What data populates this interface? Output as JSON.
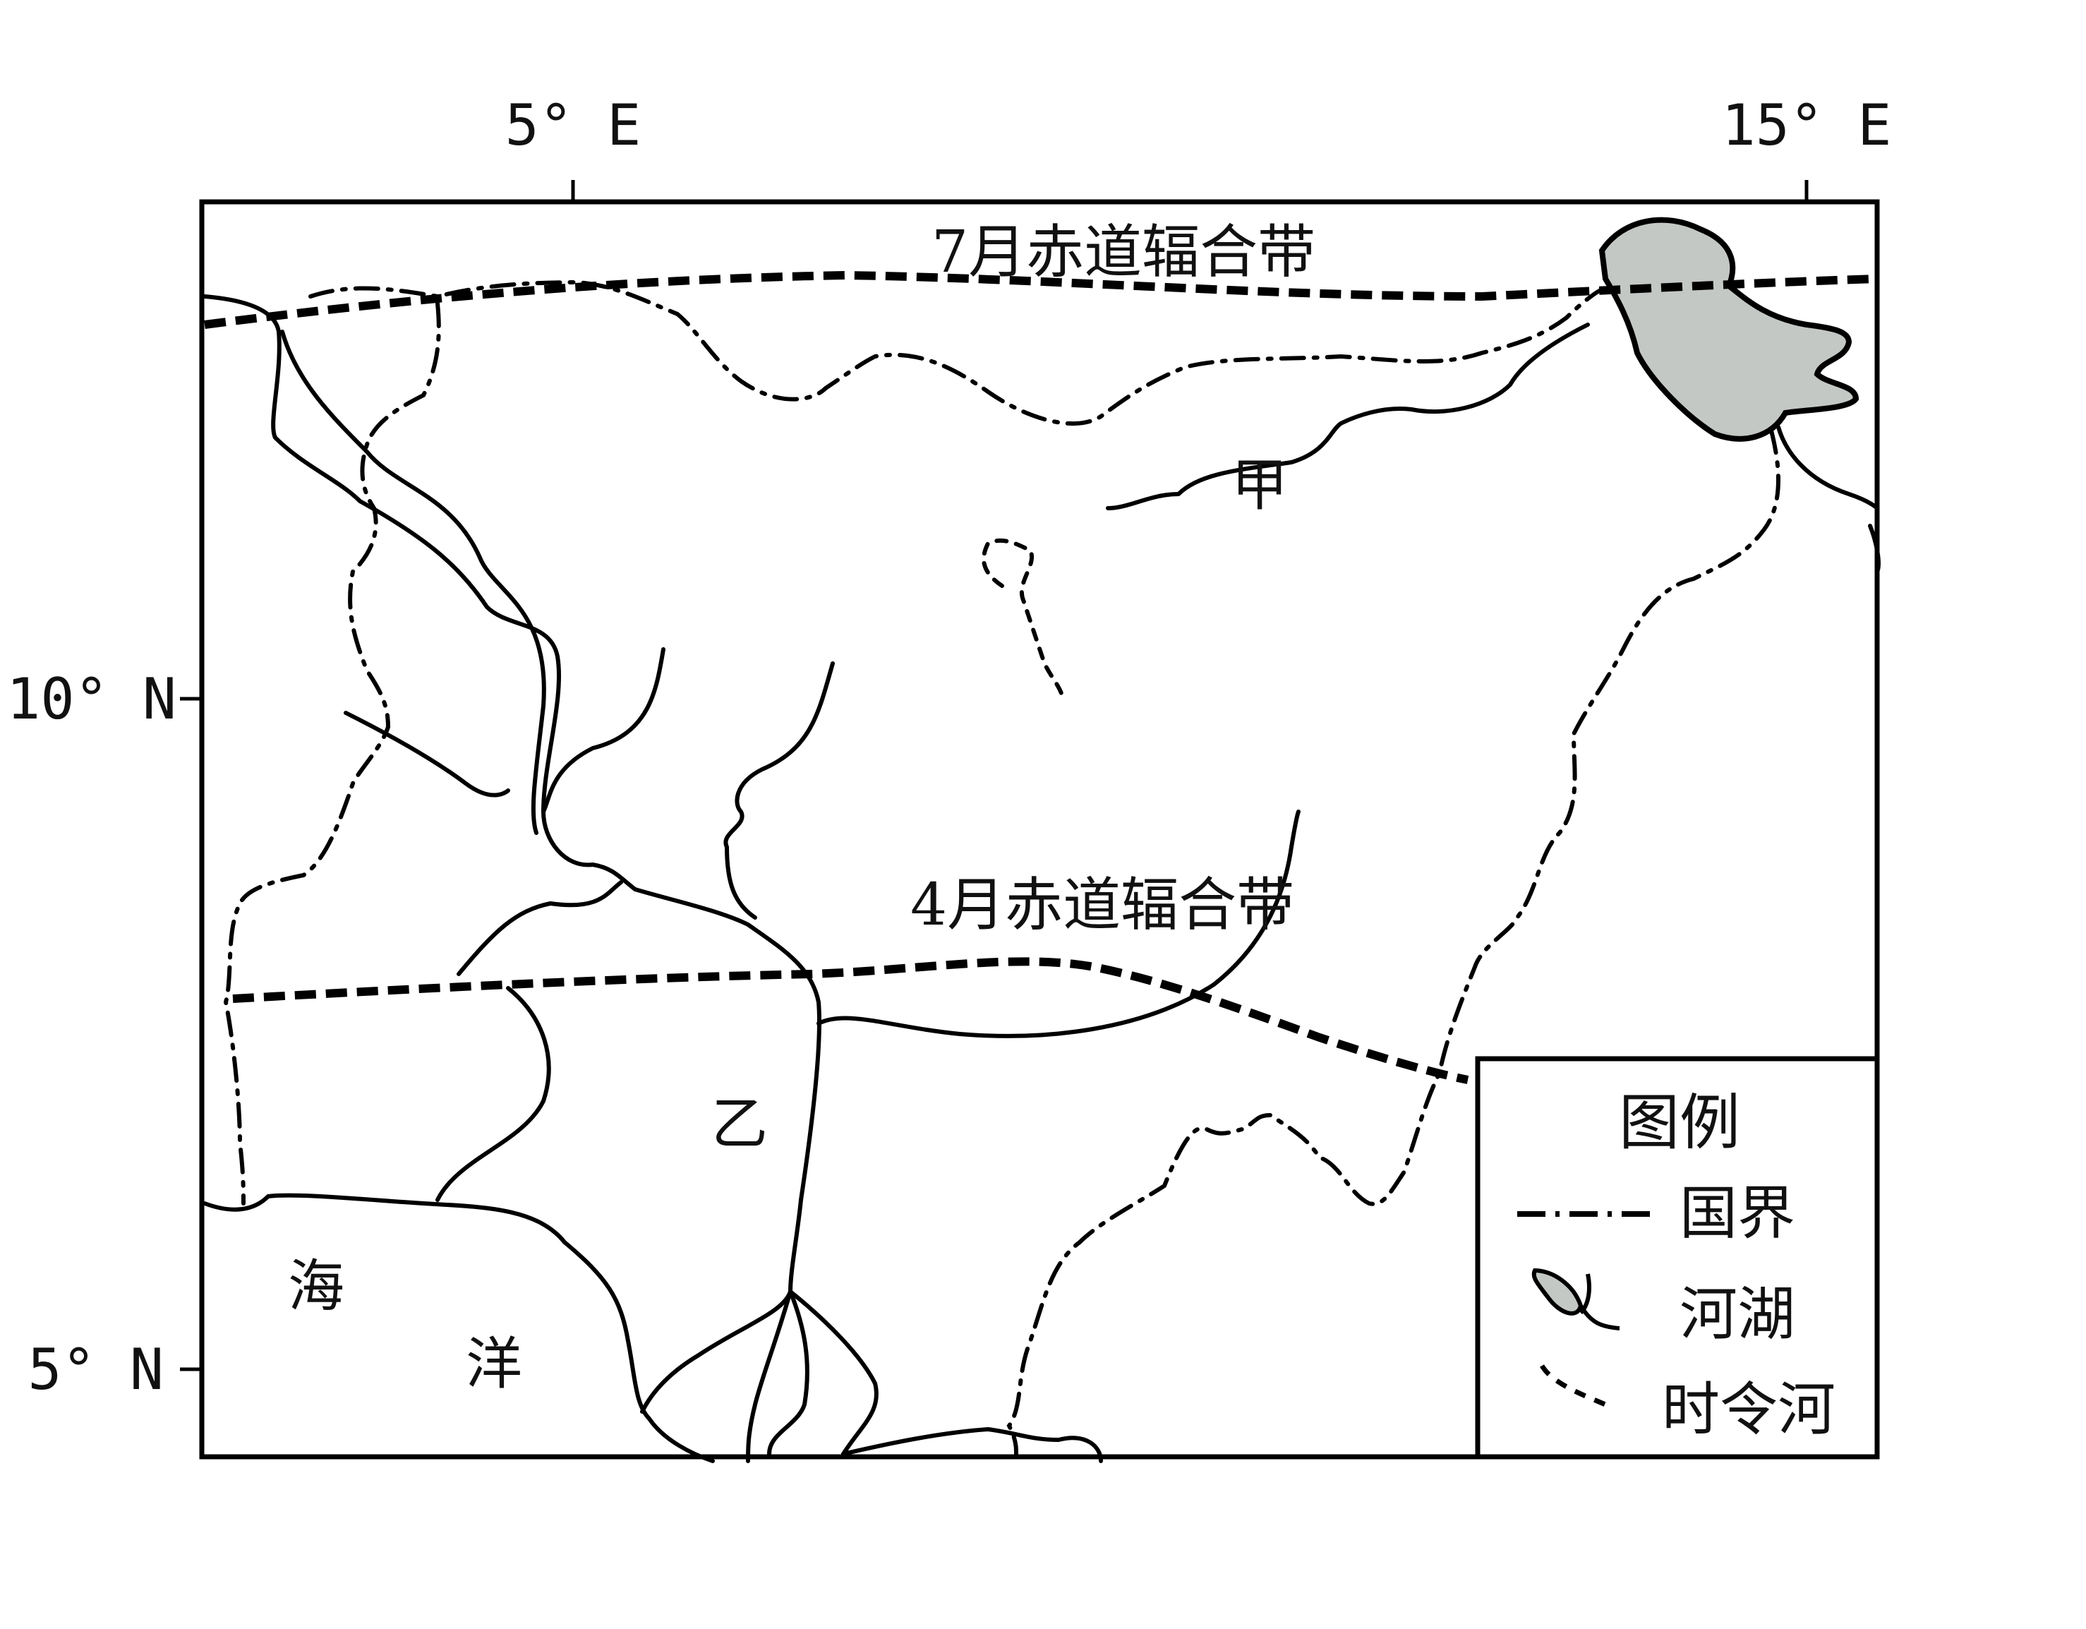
{
  "axes": {
    "top": [
      "5° E",
      "15° E"
    ],
    "left": [
      "10° N",
      "5° N"
    ]
  },
  "labels": {
    "itcz_july": "7月赤道辐合带",
    "itcz_april": "4月赤道辐合带",
    "jia": "甲",
    "yi": "乙",
    "ocean_1": "海",
    "ocean_2": "洋"
  },
  "legend": {
    "title": "图例",
    "items": [
      {
        "icon": "border-line-icon",
        "label": "国界"
      },
      {
        "icon": "river-lake-icon",
        "label": "河湖"
      },
      {
        "icon": "seasonal-river-icon",
        "label": "时令河"
      }
    ]
  },
  "colors": {
    "lake_fill": "#c4c8c4",
    "line": "#000000",
    "background": "#ffffff"
  }
}
